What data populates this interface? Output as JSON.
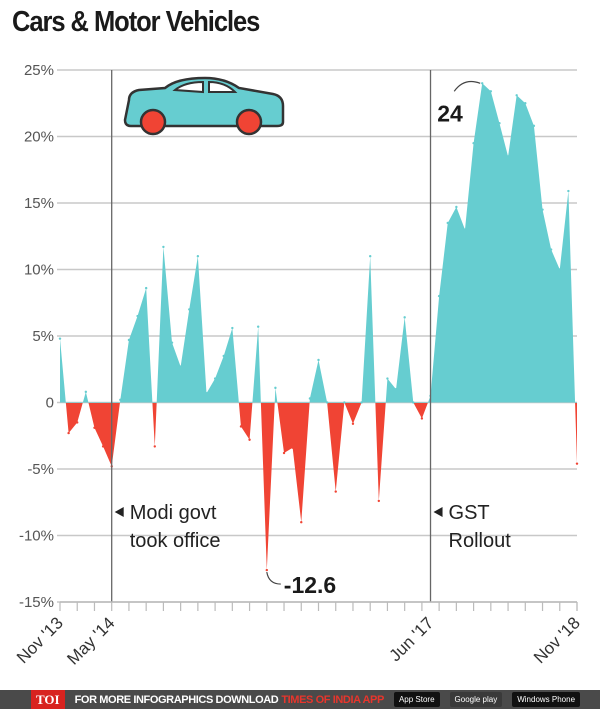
{
  "title": "Cars & Motor Vehicles",
  "chart_data": {
    "type": "area",
    "title": "Cars & Motor Vehicles",
    "xlabel": "",
    "ylabel": "",
    "ylim": [
      -15,
      25
    ],
    "yticks": [
      "25%",
      "20%",
      "15%",
      "10%",
      "5%",
      "0",
      "-5%",
      "-10%",
      "-15%"
    ],
    "ytick_values": [
      25,
      20,
      15,
      10,
      5,
      0,
      -5,
      -10,
      -15
    ],
    "grid": true,
    "xtick_labels": [
      "Nov '13",
      "May '14",
      "Jun '17",
      "Nov '18"
    ],
    "xtick_index": [
      0,
      6,
      43,
      60
    ],
    "x_start": "Nov 2013",
    "x_end": "Nov 2018",
    "frequency": "monthly",
    "positive_color": "#66cdd0",
    "negative_color": "#f04434",
    "values": [
      4.8,
      -2.3,
      -1.5,
      0.8,
      -1.9,
      -3.3,
      -4.8,
      0.2,
      4.7,
      6.5,
      8.6,
      -3.3,
      11.7,
      4.5,
      2.7,
      7.0,
      11.0,
      0.7,
      1.8,
      3.5,
      5.6,
      -1.8,
      -2.8,
      5.7,
      -12.6,
      1.1,
      -3.8,
      -3.4,
      -9.0,
      0.3,
      3.2,
      0.0,
      -6.7,
      0.0,
      -1.6,
      0.0,
      11.0,
      -7.4,
      1.8,
      1.0,
      6.4,
      0.0,
      -1.2,
      0.5,
      8.0,
      13.5,
      14.7,
      13.0,
      19.5,
      24.0,
      23.4,
      21.0,
      18.5,
      23.1,
      22.5,
      20.8,
      14.5,
      11.5,
      10.0,
      15.9,
      -4.6
    ],
    "annotations": [
      {
        "text": "24",
        "index": 49
      },
      {
        "text": "-12.6",
        "index": 24
      }
    ],
    "events": [
      {
        "index": 6,
        "line1": "Modi govt",
        "line2": "took office"
      },
      {
        "index": 43,
        "line1": "GST",
        "line2": "Rollout"
      }
    ]
  },
  "footer": {
    "logo": "TOI",
    "text": "FOR MORE  INFOGRAPHICS DOWNLOAD",
    "app": "TIMES OF INDIA  APP",
    "badges": [
      "App Store",
      "Google play",
      "Windows Phone"
    ]
  }
}
